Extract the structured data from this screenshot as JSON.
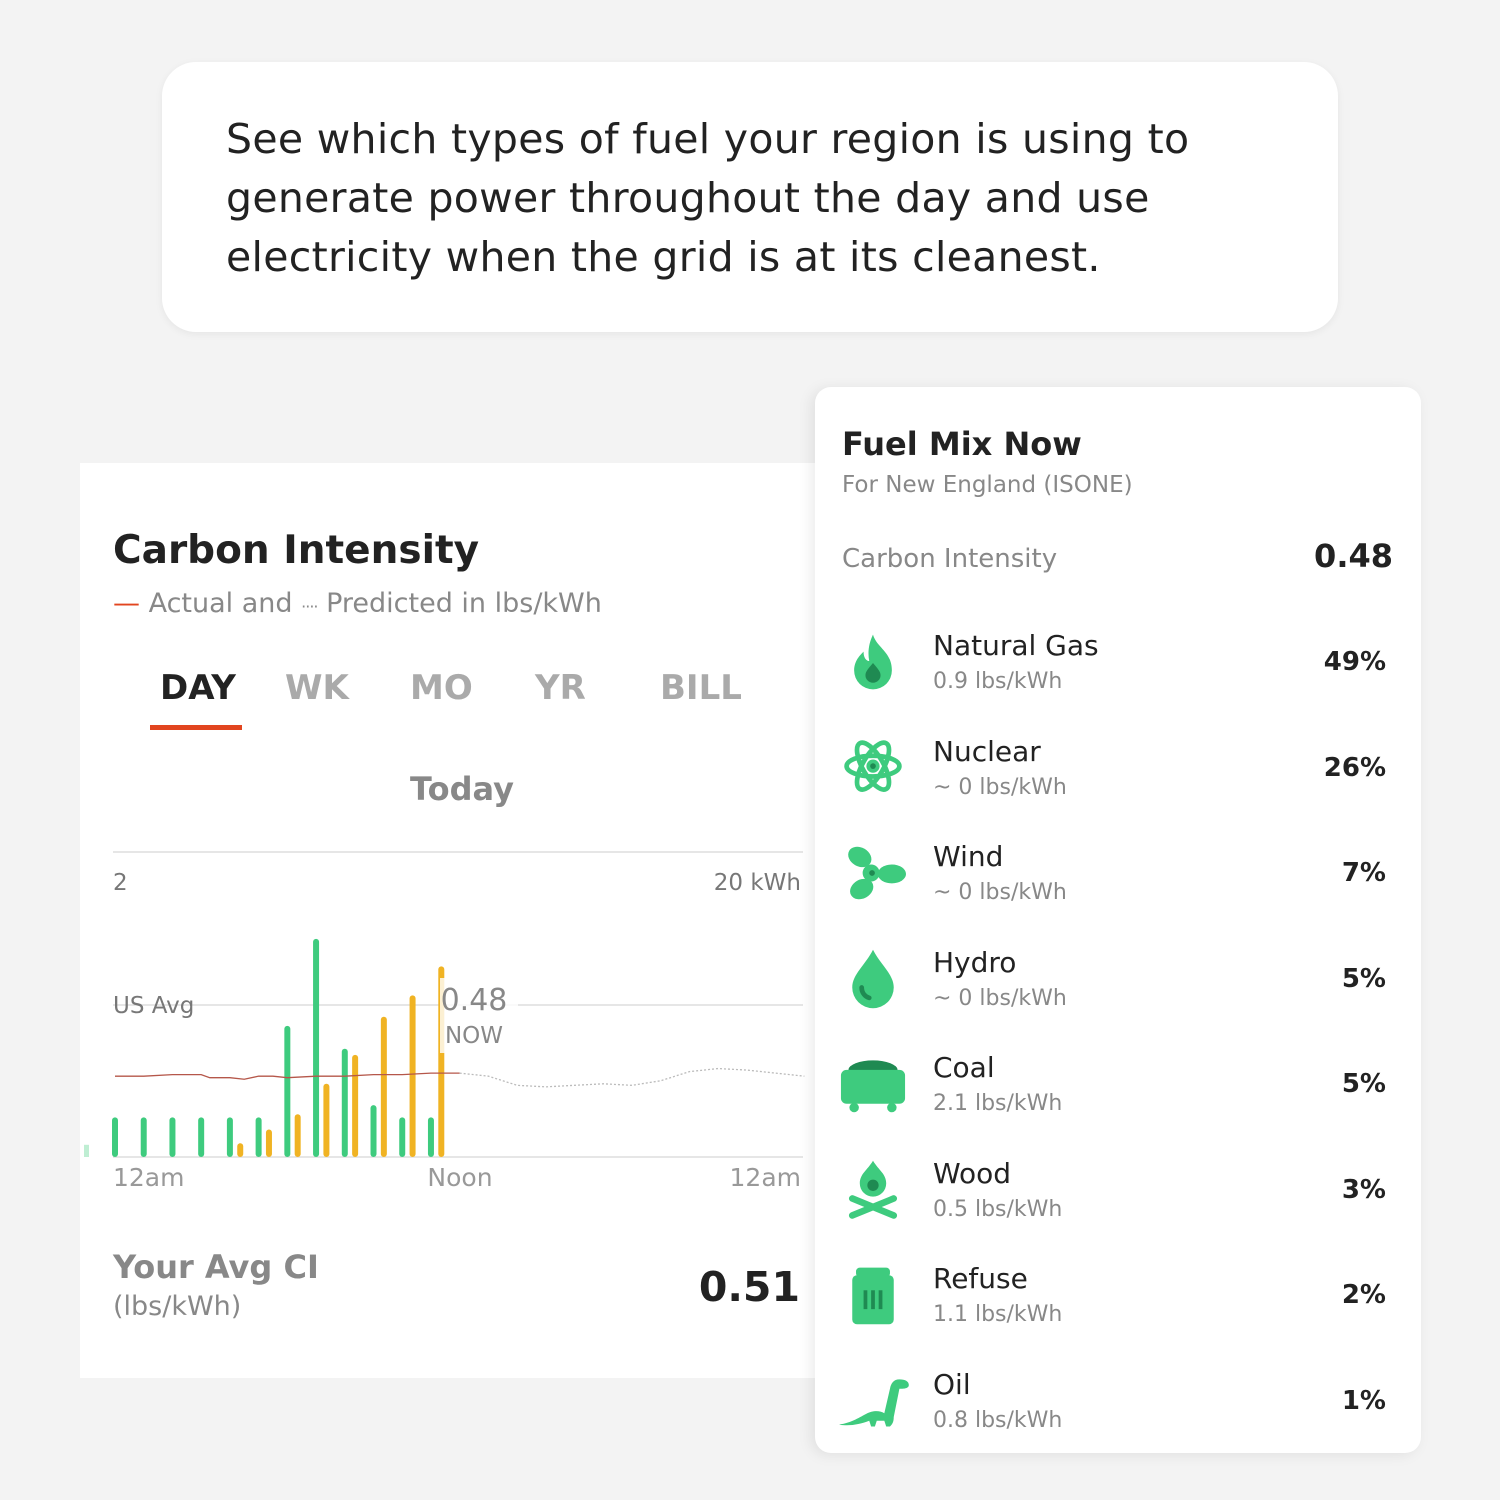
{
  "banner": {
    "text": "See which types of fuel your region is using to generate power throughout the day and use electricity when the grid is at its cleanest."
  },
  "carbon_card": {
    "title": "Carbon Intensity",
    "subtitle_actual": "Actual and",
    "subtitle_predicted": "Predicted in lbs/kWh",
    "tabs": [
      {
        "label": "DAY",
        "active": true
      },
      {
        "label": "WK"
      },
      {
        "label": "MO"
      },
      {
        "label": "YR"
      },
      {
        "label": "BILL"
      }
    ],
    "period": "Today",
    "avg_label": "Your Avg CI",
    "avg_unit": "(lbs/kWh)",
    "avg_value": "0.51"
  },
  "chart_data": {
    "type": "bar",
    "left_axis_top_label": "2",
    "right_axis_top_label": "20 kWh",
    "reference_label": "US Avg",
    "now_value": "0.48",
    "now_label": "NOW",
    "x_tick_labels": [
      "12am",
      "Noon",
      "12am"
    ],
    "ylim_left": [
      0,
      2
    ],
    "ylim_right": [
      0,
      20
    ],
    "colors": {
      "green": "#3ecb7e",
      "orange": "#f0b323",
      "actual_line": "#b5574a",
      "predicted_line": "#bbbbbb"
    },
    "series": [
      {
        "color": "green",
        "hours": [
          0,
          1,
          2,
          3,
          4,
          5,
          6,
          7,
          8,
          9,
          10,
          11
        ],
        "values": [
          2.6,
          2.6,
          2.6,
          2.6,
          2.6,
          2.6,
          8.6,
          14.3,
          7.1,
          3.4,
          2.6,
          2.6
        ]
      },
      {
        "color": "orange",
        "hours": [
          4,
          5,
          6,
          7,
          8,
          9,
          10,
          11
        ],
        "values": [
          0.9,
          1.8,
          2.8,
          4.8,
          6.7,
          9.2,
          10.6,
          12.5
        ]
      }
    ],
    "actual_ci": {
      "hours": [
        0,
        1,
        2,
        3,
        3.3,
        4,
        4.5,
        5,
        5.5,
        6,
        7,
        8,
        9,
        10,
        11,
        12
      ],
      "values": [
        0.53,
        0.53,
        0.54,
        0.54,
        0.52,
        0.52,
        0.51,
        0.53,
        0.53,
        0.52,
        0.53,
        0.53,
        0.54,
        0.54,
        0.55,
        0.55
      ]
    },
    "predicted_ci": {
      "hours": [
        12,
        13,
        14,
        15,
        16,
        17,
        18,
        19,
        20,
        21,
        22,
        23,
        24
      ],
      "values": [
        0.55,
        0.53,
        0.47,
        0.46,
        0.47,
        0.48,
        0.47,
        0.5,
        0.56,
        0.58,
        0.57,
        0.55,
        0.53
      ]
    }
  },
  "fuel_mix": {
    "title": "Fuel Mix Now",
    "subtitle": "For New England (ISONE)",
    "ci_label": "Carbon Intensity",
    "ci_value": "0.48",
    "icon_color": "#3ecb7e",
    "items": [
      {
        "name": "Natural Gas",
        "rate": "0.9 lbs/kWh",
        "pct": "49%",
        "icon": "flame-icon"
      },
      {
        "name": "Nuclear",
        "rate": "~ 0 lbs/kWh",
        "pct": "26%",
        "icon": "atom-icon"
      },
      {
        "name": "Wind",
        "rate": "~ 0 lbs/kWh",
        "pct": "7%",
        "icon": "propeller-icon"
      },
      {
        "name": "Hydro",
        "rate": "~ 0 lbs/kWh",
        "pct": "5%",
        "icon": "water-drop-icon"
      },
      {
        "name": "Coal",
        "rate": "2.1 lbs/kWh",
        "pct": "5%",
        "icon": "coal-cart-icon"
      },
      {
        "name": "Wood",
        "rate": "0.5 lbs/kWh",
        "pct": "3%",
        "icon": "campfire-icon"
      },
      {
        "name": "Refuse",
        "rate": "1.1 lbs/kWh",
        "pct": "2%",
        "icon": "trash-can-icon"
      },
      {
        "name": "Oil",
        "rate": "0.8 lbs/kWh",
        "pct": "1%",
        "icon": "dinosaur-icon"
      }
    ]
  }
}
